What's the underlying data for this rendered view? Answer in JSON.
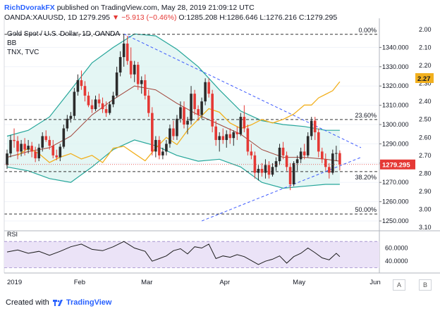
{
  "header": {
    "author": "RichDvorakFX",
    "published_text": "published on TradingView.com, May 28, 2019 21:09:12 UTC",
    "symbol": "OANDA:XAUUSD, 1D",
    "last": "1279.295",
    "change": "▼ −5.913 (−0.46%)",
    "open": "O:1285.208",
    "high": "H:1286.646",
    "low": "L:1276.216",
    "close": "C:1279.295"
  },
  "legend": {
    "line1": "Gold Spot / U.S. Dollar, 1D, OANDA",
    "line2": "BB",
    "line3": "TNX, TVC"
  },
  "footer": {
    "created_with": "Created with",
    "brand": "TradingView"
  },
  "axis_buttons": {
    "log": "A",
    "pct": "B"
  },
  "colors": {
    "up": "#2b2b2b",
    "down": "#e53935",
    "bb_band": "#26a69a",
    "bb_fill": "#d9f2ef",
    "bb_basis": "#a1443a",
    "tnx": "#f2b01e",
    "trend": "#3d5afe",
    "rsi": "#1c1c1c",
    "rsi_fill": "#ebe3f7",
    "price_tag": "#e53935",
    "tnx_tag": "#f2b01e"
  },
  "chart_data": [
    {
      "type": "candlestick",
      "title": "Gold Spot / U.S. Dollar, 1D, OANDA",
      "xlabel": "",
      "ylabel": "",
      "x_ticks": [
        "2019",
        "Feb",
        "Mar",
        "Apr",
        "May",
        "Jun"
      ],
      "y_ticks_right": [
        1250,
        1260,
        1270,
        1280,
        1290,
        1300,
        1310,
        1320,
        1330,
        1340
      ],
      "y_tick_labels_right": [
        "1250.000",
        "1260.000",
        "1270.000",
        "1280.000",
        "1290.000",
        "1300.000",
        "1310.000",
        "1320.000",
        "1330.000",
        "1340.000"
      ],
      "ylim": [
        1246,
        1350
      ],
      "secondary_y_ticks": [
        2.0,
        2.1,
        2.2,
        2.3,
        2.4,
        2.5,
        2.6,
        2.7,
        2.8,
        2.9,
        3.0,
        3.1
      ],
      "secondary_y_tick_labels": [
        "2.00",
        "2.10",
        "2.20",
        "2.30",
        "2.40",
        "2.50",
        "2.60",
        "2.70",
        "2.80",
        "2.90",
        "3.00",
        "3.10"
      ],
      "price_label": "1279.295",
      "tnx_label": "2.27",
      "fib_levels": [
        {
          "label": "0.00%",
          "value": 1346.8
        },
        {
          "label": "23.60%",
          "value": 1302.6
        },
        {
          "label": "38.20%",
          "value": 1275.6
        },
        {
          "label": "50.00%",
          "value": 1253.6
        }
      ],
      "candles": [
        [
          1279.0,
          1287.0,
          1277.0,
          1285.0
        ],
        [
          1285.0,
          1294.5,
          1283.0,
          1292.0
        ],
        [
          1292.0,
          1298.0,
          1288.0,
          1291.5
        ],
        [
          1291.5,
          1294.0,
          1282.0,
          1286.0
        ],
        [
          1286.0,
          1292.0,
          1283.5,
          1290.0
        ],
        [
          1290.0,
          1293.0,
          1284.0,
          1287.0
        ],
        [
          1287.0,
          1292.0,
          1285.0,
          1289.0
        ],
        [
          1289.0,
          1291.0,
          1283.0,
          1286.0
        ],
        [
          1286.0,
          1288.5,
          1280.5,
          1282.5
        ],
        [
          1282.5,
          1290.0,
          1281.0,
          1288.0
        ],
        [
          1288.0,
          1296.0,
          1286.0,
          1294.0
        ],
        [
          1294.0,
          1297.0,
          1291.0,
          1292.0
        ],
        [
          1292.0,
          1294.0,
          1287.0,
          1289.0
        ],
        [
          1289.0,
          1292.0,
          1282.5,
          1284.0
        ],
        [
          1284.0,
          1287.0,
          1281.5,
          1283.0
        ],
        [
          1283.0,
          1290.0,
          1281.0,
          1288.5
        ],
        [
          1288.5,
          1300.0,
          1287.5,
          1298.0
        ],
        [
          1298.0,
          1305.0,
          1296.5,
          1303.0
        ],
        [
          1303.0,
          1306.5,
          1301.0,
          1304.5
        ],
        [
          1304.5,
          1319.0,
          1303.0,
          1317.0
        ],
        [
          1317.0,
          1326.0,
          1315.0,
          1323.0
        ],
        [
          1323.0,
          1328.0,
          1318.0,
          1320.0
        ],
        [
          1320.0,
          1322.5,
          1312.0,
          1315.0
        ],
        [
          1315.0,
          1317.0,
          1309.0,
          1310.0
        ],
        [
          1310.0,
          1313.0,
          1306.0,
          1308.0
        ],
        [
          1308.0,
          1315.0,
          1307.0,
          1313.0
        ],
        [
          1313.0,
          1316.0,
          1309.0,
          1311.0
        ],
        [
          1311.0,
          1314.0,
          1306.0,
          1308.0
        ],
        [
          1308.0,
          1312.0,
          1304.0,
          1306.0
        ],
        [
          1306.0,
          1312.0,
          1305.0,
          1310.5
        ],
        [
          1310.5,
          1317.0,
          1309.0,
          1315.0
        ],
        [
          1315.0,
          1330.0,
          1314.0,
          1327.0
        ],
        [
          1327.0,
          1338.0,
          1325.0,
          1335.0
        ],
        [
          1335.0,
          1347.0,
          1330.0,
          1342.0
        ],
        [
          1342.0,
          1346.0,
          1331.0,
          1333.0
        ],
        [
          1333.0,
          1340.0,
          1324.0,
          1326.0
        ],
        [
          1326.0,
          1333.0,
          1322.0,
          1331.0
        ],
        [
          1331.0,
          1332.5,
          1318.0,
          1321.0
        ],
        [
          1321.0,
          1325.0,
          1316.0,
          1323.0
        ],
        [
          1323.0,
          1326.0,
          1313.0,
          1315.0
        ],
        [
          1315.0,
          1318.0,
          1304.0,
          1306.0
        ],
        [
          1306.0,
          1309.0,
          1284.0,
          1286.0
        ],
        [
          1286.0,
          1294.0,
          1283.0,
          1292.0
        ],
        [
          1292.0,
          1294.0,
          1282.0,
          1284.0
        ],
        [
          1284.0,
          1288.0,
          1282.0,
          1286.0
        ],
        [
          1286.0,
          1292.0,
          1284.0,
          1290.0
        ],
        [
          1290.0,
          1300.0,
          1288.0,
          1298.0
        ],
        [
          1298.0,
          1302.0,
          1292.0,
          1294.0
        ],
        [
          1294.0,
          1305.0,
          1292.0,
          1303.0
        ],
        [
          1303.0,
          1312.0,
          1301.0,
          1309.0
        ],
        [
          1309.0,
          1312.0,
          1298.0,
          1300.0
        ],
        [
          1300.0,
          1304.0,
          1295.0,
          1302.0
        ],
        [
          1302.0,
          1320.0,
          1300.0,
          1316.0
        ],
        [
          1316.0,
          1318.0,
          1305.0,
          1308.0
        ],
        [
          1308.0,
          1310.0,
          1302.0,
          1305.0
        ],
        [
          1305.0,
          1314.0,
          1303.0,
          1312.0
        ],
        [
          1312.0,
          1324.0,
          1310.0,
          1322.0
        ],
        [
          1322.0,
          1324.0,
          1314.0,
          1316.0
        ],
        [
          1316.0,
          1318.0,
          1296.0,
          1299.0
        ],
        [
          1299.0,
          1302.0,
          1289.0,
          1292.0
        ],
        [
          1292.0,
          1296.0,
          1286.0,
          1294.0
        ],
        [
          1294.0,
          1298.0,
          1290.0,
          1292.0
        ],
        [
          1292.0,
          1297.0,
          1288.0,
          1295.0
        ],
        [
          1295.0,
          1298.0,
          1290.0,
          1293.0
        ],
        [
          1293.0,
          1297.0,
          1289.0,
          1296.0
        ],
        [
          1296.0,
          1299.0,
          1292.0,
          1295.0
        ],
        [
          1295.0,
          1306.0,
          1294.0,
          1304.0
        ],
        [
          1304.0,
          1310.0,
          1296.0,
          1298.0
        ],
        [
          1298.0,
          1300.0,
          1284.0,
          1286.0
        ],
        [
          1286.0,
          1290.0,
          1282.0,
          1284.0
        ],
        [
          1284.0,
          1286.0,
          1272.0,
          1275.0
        ],
        [
          1275.0,
          1279.0,
          1271.0,
          1277.0
        ],
        [
          1277.0,
          1280.0,
          1273.0,
          1275.0
        ],
        [
          1275.0,
          1282.0,
          1272.0,
          1279.0
        ],
        [
          1279.0,
          1281.0,
          1272.0,
          1274.0
        ],
        [
          1274.0,
          1280.0,
          1273.0,
          1278.0
        ],
        [
          1278.0,
          1283.0,
          1276.0,
          1281.0
        ],
        [
          1281.0,
          1290.0,
          1279.0,
          1288.0
        ],
        [
          1288.0,
          1291.0,
          1282.0,
          1284.0
        ],
        [
          1284.0,
          1286.0,
          1276.0,
          1278.0
        ],
        [
          1278.0,
          1280.0,
          1266.0,
          1269.0
        ],
        [
          1269.0,
          1281.0,
          1268.0,
          1280.0
        ],
        [
          1280.0,
          1284.0,
          1276.0,
          1282.0
        ],
        [
          1282.0,
          1288.0,
          1280.0,
          1286.0
        ],
        [
          1286.0,
          1290.0,
          1282.0,
          1284.0
        ],
        [
          1284.0,
          1296.0,
          1283.0,
          1294.0
        ],
        [
          1294.0,
          1304.0,
          1292.0,
          1302.0
        ],
        [
          1302.0,
          1304.0,
          1292.0,
          1296.0
        ],
        [
          1296.0,
          1298.0,
          1283.0,
          1286.0
        ],
        [
          1286.0,
          1288.0,
          1280.0,
          1282.0
        ],
        [
          1282.0,
          1285.0,
          1276.0,
          1278.0
        ],
        [
          1278.0,
          1280.0,
          1272.0,
          1275.0
        ],
        [
          1275.0,
          1287.0,
          1274.0,
          1285.0
        ],
        [
          1285.0,
          1289.0,
          1281.0,
          1285.2
        ],
        [
          1285.2,
          1286.6,
          1276.2,
          1279.3
        ]
      ],
      "bb_upper": [
        [
          0,
          1294
        ],
        [
          6,
          1297
        ],
        [
          12,
          1304
        ],
        [
          18,
          1318
        ],
        [
          24,
          1332
        ],
        [
          30,
          1340
        ],
        [
          36,
          1347
        ],
        [
          42,
          1346
        ],
        [
          48,
          1339
        ],
        [
          54,
          1330
        ],
        [
          60,
          1318
        ],
        [
          66,
          1307
        ],
        [
          72,
          1302
        ],
        [
          78,
          1300
        ],
        [
          84,
          1299
        ],
        [
          90,
          1297
        ],
        [
          94,
          1297
        ]
      ],
      "bb_lower": [
        [
          0,
          1278
        ],
        [
          6,
          1276
        ],
        [
          12,
          1272
        ],
        [
          18,
          1270
        ],
        [
          24,
          1278
        ],
        [
          30,
          1287
        ],
        [
          36,
          1292
        ],
        [
          42,
          1289
        ],
        [
          48,
          1284
        ],
        [
          54,
          1281
        ],
        [
          60,
          1282
        ],
        [
          66,
          1278
        ],
        [
          72,
          1270
        ],
        [
          78,
          1267
        ],
        [
          84,
          1268
        ],
        [
          90,
          1269
        ],
        [
          94,
          1269
        ]
      ],
      "bb_basis": [
        [
          0,
          1283
        ],
        [
          6,
          1286
        ],
        [
          12,
          1288
        ],
        [
          18,
          1294
        ],
        [
          24,
          1305
        ],
        [
          30,
          1313
        ],
        [
          36,
          1320
        ],
        [
          42,
          1318
        ],
        [
          48,
          1311
        ],
        [
          54,
          1305
        ],
        [
          60,
          1300
        ],
        [
          66,
          1295
        ],
        [
          72,
          1287
        ],
        [
          78,
          1283
        ],
        [
          84,
          1283
        ],
        [
          90,
          1282
        ],
        [
          94,
          1281
        ]
      ],
      "tnx": [
        [
          3,
          2.7
        ],
        [
          6,
          2.66
        ],
        [
          9,
          2.69
        ],
        [
          12,
          2.74
        ],
        [
          15,
          2.71
        ],
        [
          18,
          2.69
        ],
        [
          21,
          2.72
        ],
        [
          24,
          2.7
        ],
        [
          27,
          2.74
        ],
        [
          30,
          2.66
        ],
        [
          33,
          2.65
        ],
        [
          36,
          2.69
        ],
        [
          39,
          2.73
        ],
        [
          42,
          2.66
        ],
        [
          45,
          2.6
        ],
        [
          48,
          2.64
        ],
        [
          51,
          2.56
        ],
        [
          54,
          2.5
        ],
        [
          57,
          2.44
        ],
        [
          60,
          2.46
        ],
        [
          63,
          2.52
        ],
        [
          66,
          2.55
        ],
        [
          69,
          2.53
        ],
        [
          72,
          2.5
        ],
        [
          75,
          2.52
        ],
        [
          78,
          2.5
        ],
        [
          81,
          2.47
        ],
        [
          84,
          2.42
        ],
        [
          86,
          2.42
        ],
        [
          88,
          2.38
        ],
        [
          90,
          2.36
        ],
        [
          92,
          2.34
        ],
        [
          94,
          2.29
        ]
      ],
      "trend_upper": [
        [
          33,
          1347
        ],
        [
          100,
          1288
        ]
      ],
      "trend_lower": [
        [
          55,
          1250
        ],
        [
          100,
          1283
        ]
      ]
    },
    {
      "type": "line",
      "title": "RSI",
      "xlabel": "",
      "ylabel": "",
      "y_ticks": [
        40,
        60
      ],
      "y_tick_labels": [
        "40.0000",
        "60.0000"
      ],
      "ylim": [
        22,
        82
      ],
      "band": [
        30,
        70
      ],
      "values": [
        [
          0,
          54
        ],
        [
          3,
          57
        ],
        [
          6,
          52
        ],
        [
          9,
          55
        ],
        [
          12,
          49
        ],
        [
          15,
          55
        ],
        [
          18,
          62
        ],
        [
          21,
          66
        ],
        [
          24,
          58
        ],
        [
          27,
          56
        ],
        [
          30,
          62
        ],
        [
          33,
          70
        ],
        [
          36,
          60
        ],
        [
          39,
          55
        ],
        [
          41,
          40
        ],
        [
          43,
          44
        ],
        [
          45,
          48
        ],
        [
          47,
          56
        ],
        [
          49,
          59
        ],
        [
          51,
          51
        ],
        [
          53,
          62
        ],
        [
          55,
          60
        ],
        [
          57,
          66
        ],
        [
          59,
          44
        ],
        [
          61,
          48
        ],
        [
          63,
          46
        ],
        [
          65,
          50
        ],
        [
          67,
          47
        ],
        [
          69,
          41
        ],
        [
          71,
          35
        ],
        [
          73,
          40
        ],
        [
          75,
          43
        ],
        [
          77,
          48
        ],
        [
          79,
          37
        ],
        [
          81,
          47
        ],
        [
          83,
          52
        ],
        [
          85,
          60
        ],
        [
          87,
          53
        ],
        [
          89,
          45
        ],
        [
          91,
          42
        ],
        [
          93,
          52
        ],
        [
          94,
          47
        ]
      ]
    }
  ]
}
